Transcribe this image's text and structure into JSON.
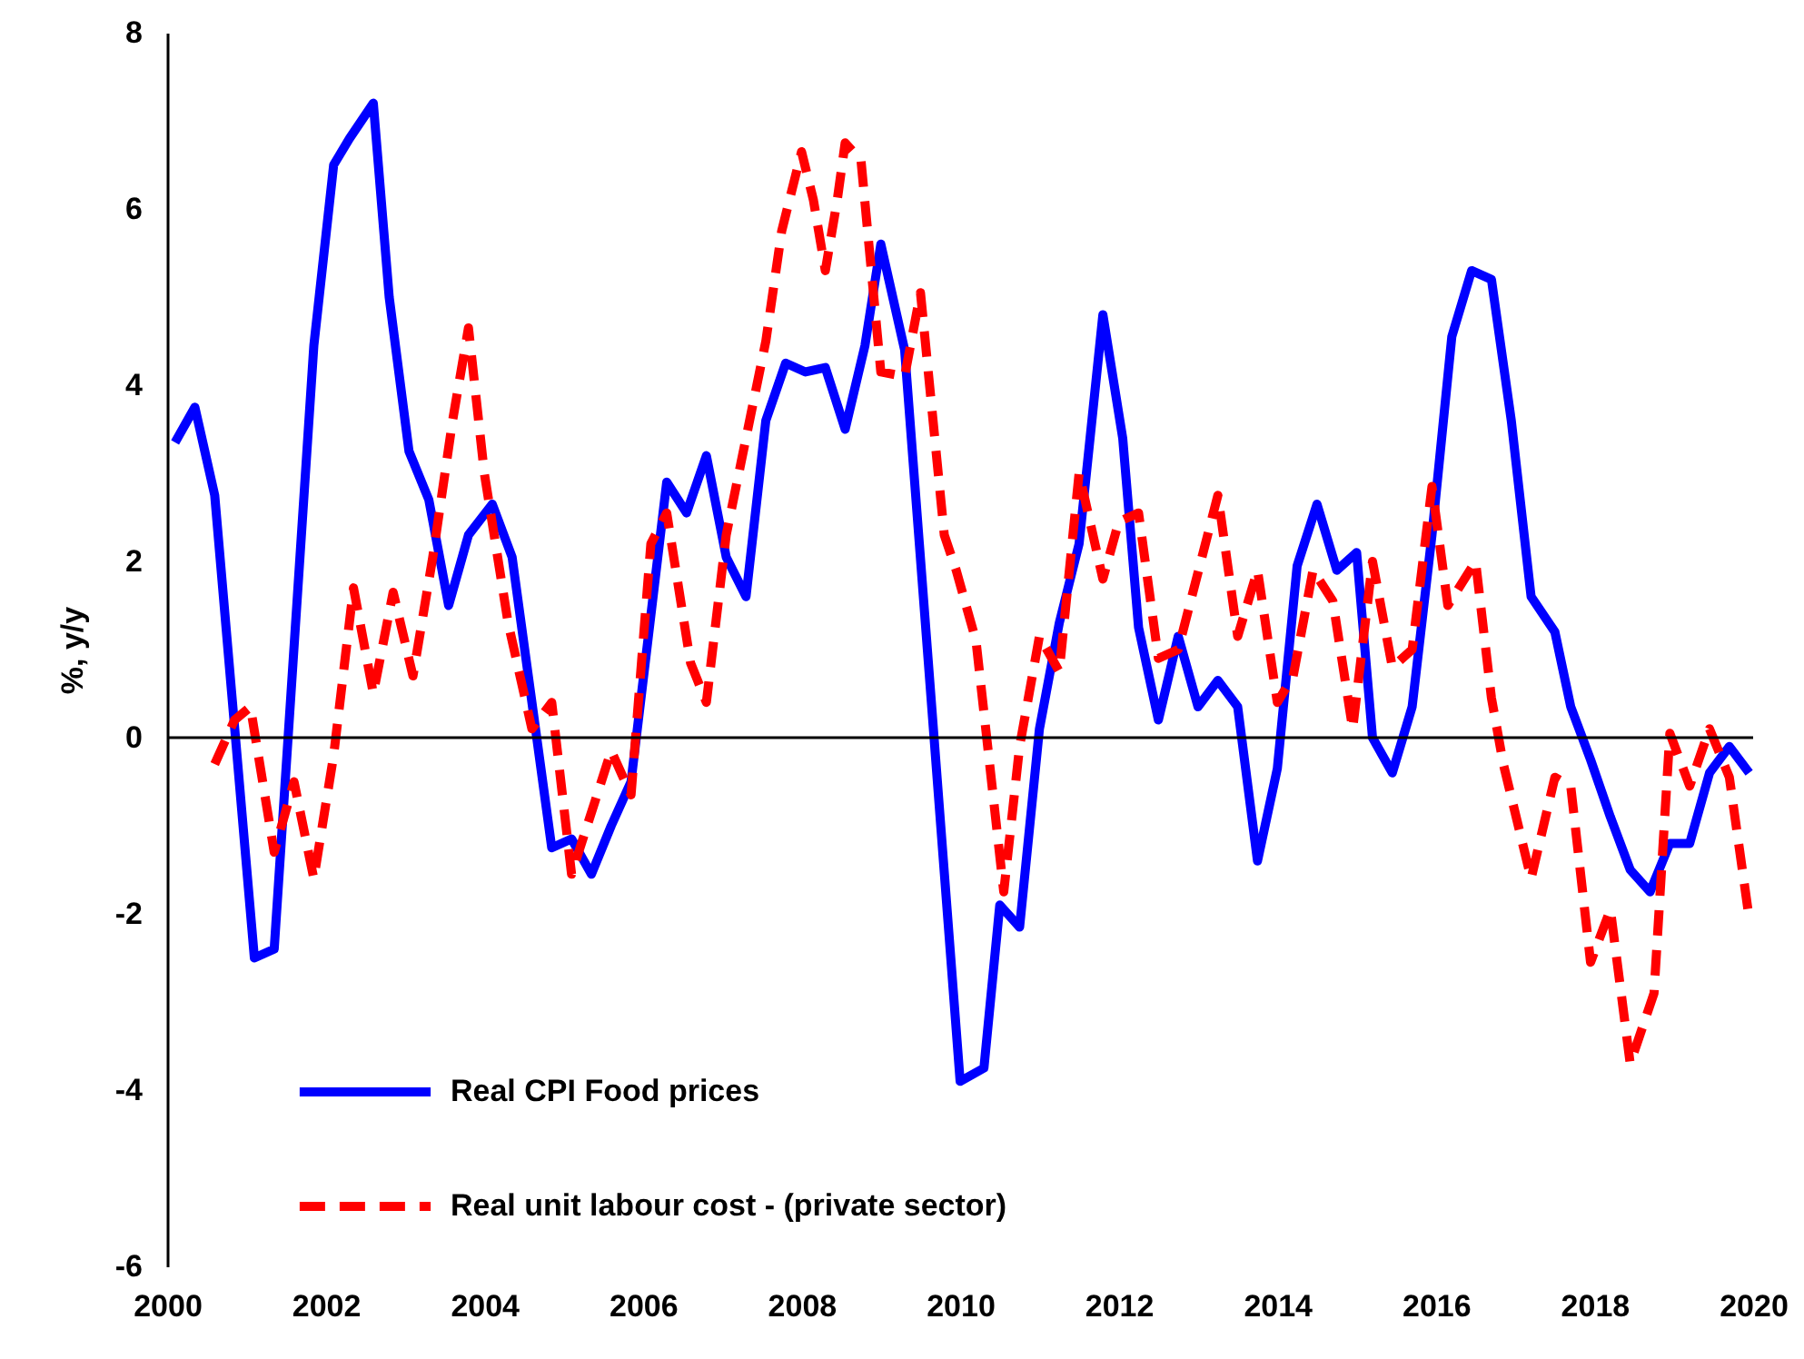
{
  "chart_data": {
    "type": "line",
    "ylabel": "%, y/y",
    "xlim": [
      2000,
      2020
    ],
    "xticks": [
      2000,
      2002,
      2004,
      2006,
      2008,
      2010,
      2012,
      2014,
      2016,
      2018,
      2020
    ],
    "ylim": [
      -6,
      8
    ],
    "yticks": [
      -6,
      -4,
      -2,
      0,
      2,
      4,
      6,
      8
    ],
    "grid": false,
    "legend": "bottom left",
    "marker": "none",
    "ref_lines": [
      {
        "axis": "y",
        "value": 0,
        "color": "#000000"
      }
    ],
    "series": [
      {
        "name": "Real CPI Food prices",
        "color": "#0000ff",
        "line_style": "solid",
        "x": [
          2000.1,
          2000.35,
          2000.6,
          2001.1,
          2001.35,
          2001.85,
          2002.1,
          2002.3,
          2002.6,
          2002.8,
          2003.05,
          2003.3,
          2003.55,
          2003.8,
          2004.1,
          2004.35,
          2004.85,
          2005.1,
          2005.35,
          2005.6,
          2005.85,
          2006.3,
          2006.55,
          2006.8,
          2007.05,
          2007.3,
          2007.55,
          2007.8,
          2008.05,
          2008.3,
          2008.55,
          2008.8,
          2009.0,
          2009.3,
          2010.0,
          2010.3,
          2010.5,
          2010.75,
          2011.0,
          2011.25,
          2011.5,
          2011.8,
          2012.05,
          2012.25,
          2012.5,
          2012.75,
          2013.0,
          2013.25,
          2013.5,
          2013.75,
          2014.0,
          2014.25,
          2014.5,
          2014.75,
          2015.0,
          2015.2,
          2015.45,
          2015.7,
          2015.95,
          2016.2,
          2016.45,
          2016.7,
          2016.95,
          2017.2,
          2017.5,
          2017.7,
          2017.95,
          2018.2,
          2018.45,
          2018.7,
          2018.95,
          2019.2,
          2019.45,
          2019.7,
          2019.95
        ],
        "values": [
          3.35,
          3.75,
          2.75,
          -2.5,
          -2.4,
          4.45,
          6.5,
          6.8,
          7.2,
          5.0,
          3.25,
          2.7,
          1.5,
          2.3,
          2.65,
          2.05,
          -1.25,
          -1.15,
          -1.55,
          -1.0,
          -0.5,
          2.9,
          2.55,
          3.2,
          2.05,
          1.6,
          3.6,
          4.25,
          4.15,
          4.2,
          3.5,
          4.45,
          5.6,
          4.4,
          -3.9,
          -3.75,
          -1.9,
          -2.15,
          0.1,
          1.3,
          2.2,
          4.8,
          3.4,
          1.25,
          0.2,
          1.15,
          0.35,
          0.65,
          0.35,
          -1.4,
          -0.35,
          1.95,
          2.65,
          1.9,
          2.1,
          0.0,
          -0.4,
          0.35,
          2.3,
          4.55,
          5.3,
          5.2,
          3.6,
          1.6,
          1.2,
          0.35,
          -0.25,
          -0.9,
          -1.5,
          -1.75,
          -1.2,
          -1.2,
          -0.4,
          -0.1,
          -0.4
        ]
      },
      {
        "name": "Real unit labour cost - (private sector)",
        "color": "#ff0000",
        "line_style": "dashed",
        "x": [
          2000.6,
          2000.85,
          2001.05,
          2001.35,
          2001.6,
          2001.85,
          2002.1,
          2002.35,
          2002.6,
          2002.85,
          2003.1,
          2003.35,
          2003.6,
          2003.8,
          2004.0,
          2004.3,
          2004.6,
          2004.85,
          2005.1,
          2005.6,
          2005.85,
          2006.1,
          2006.3,
          2006.6,
          2006.8,
          2007.05,
          2007.3,
          2007.55,
          2007.75,
          2008.0,
          2008.15,
          2008.3,
          2008.45,
          2008.55,
          2008.75,
          2009.0,
          2009.3,
          2009.5,
          2009.8,
          2009.95,
          2010.2,
          2010.55,
          2010.75,
          2011.0,
          2011.25,
          2011.5,
          2011.8,
          2012.0,
          2012.25,
          2012.5,
          2012.75,
          2013.25,
          2013.5,
          2013.75,
          2014.0,
          2014.2,
          2014.45,
          2014.7,
          2014.95,
          2015.2,
          2015.45,
          2015.7,
          2015.95,
          2016.15,
          2016.5,
          2016.7,
          2016.85,
          2017.2,
          2017.5,
          2017.7,
          2017.95,
          2018.2,
          2018.45,
          2018.75,
          2018.95,
          2019.2,
          2019.45,
          2019.7,
          2019.95
        ],
        "values": [
          -0.3,
          0.2,
          0.35,
          -1.3,
          -0.5,
          -1.6,
          -0.2,
          1.7,
          0.5,
          1.65,
          0.7,
          2.05,
          3.6,
          4.65,
          3.0,
          1.3,
          0.1,
          0.4,
          -1.55,
          -0.15,
          -0.65,
          2.2,
          2.55,
          0.85,
          0.4,
          2.3,
          3.4,
          4.5,
          5.75,
          6.65,
          6.1,
          5.3,
          6.1,
          6.75,
          6.55,
          4.15,
          4.1,
          5.05,
          2.3,
          1.9,
          1.1,
          -1.75,
          -0.1,
          1.15,
          0.75,
          3.0,
          1.8,
          2.45,
          2.55,
          0.9,
          1.0,
          2.75,
          1.15,
          1.9,
          0.4,
          0.7,
          1.9,
          1.55,
          0.1,
          2.0,
          0.8,
          1.0,
          2.85,
          1.5,
          2.0,
          0.45,
          -0.3,
          -1.6,
          -0.45,
          -0.55,
          -2.55,
          -1.95,
          -3.7,
          -2.9,
          0.05,
          -0.55,
          0.1,
          -0.45,
          -2.05
        ]
      }
    ]
  }
}
